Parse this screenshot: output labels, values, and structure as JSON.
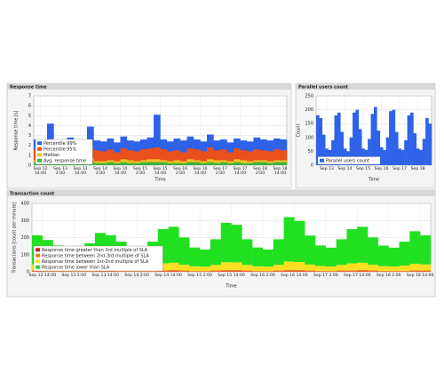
{
  "chart_data": [
    {
      "type": "area",
      "title": "Response time",
      "x_label": "Time",
      "y_label": "Response time [s]",
      "legend": "lower left",
      "grid": true,
      "x": [
        12,
        16,
        20,
        24,
        28,
        32,
        36,
        40,
        44,
        48,
        52,
        56,
        60,
        64,
        68,
        72,
        76,
        80,
        84,
        88,
        92,
        96,
        100,
        104,
        108,
        112,
        116,
        120,
        124,
        128,
        132,
        136,
        140,
        144,
        148,
        152,
        156,
        160
      ],
      "xlim": [
        10,
        162
      ],
      "xticks": [
        {
          "value": 14,
          "label": "Sep 12 14:00"
        },
        {
          "value": 26,
          "label": "Sep 13 2:00"
        },
        {
          "value": 38,
          "label": "Sep 13 14:00"
        },
        {
          "value": 50,
          "label": "Sep 14 2:00"
        },
        {
          "value": 62,
          "label": "Sep 14 14:00"
        },
        {
          "value": 74,
          "label": "Sep 15 2:00"
        },
        {
          "value": 86,
          "label": "Sep 15 14:00"
        },
        {
          "value": 98,
          "label": "Sep 16 2:00"
        },
        {
          "value": 110,
          "label": "Sep 16 14:00"
        },
        {
          "value": 122,
          "label": "Sep 17 2:00"
        },
        {
          "value": 134,
          "label": "Sep 17 14:00"
        },
        {
          "value": 146,
          "label": "Sep 18 2:00"
        },
        {
          "value": 158,
          "label": "Sep 18 14:00"
        }
      ],
      "ylim": [
        0,
        7
      ],
      "yticks": [
        0,
        1,
        2,
        3,
        4,
        5,
        6,
        7
      ],
      "series": [
        {
          "name": "Percentile 99%",
          "color": "#2e62e8",
          "values": [
            2.6,
            2.4,
            4.2,
            2.5,
            2.3,
            2.8,
            2.4,
            2.6,
            3.9,
            2.5,
            2.4,
            2.7,
            2.3,
            2.9,
            2.5,
            2.4,
            2.6,
            2.8,
            5.1,
            2.6,
            2.4,
            2.7,
            2.5,
            2.9,
            2.6,
            2.4,
            3.1,
            2.5,
            2.6,
            2.3,
            2.7,
            2.5,
            2.4,
            2.8,
            2.6,
            2.5,
            2.7,
            2.6
          ]
        },
        {
          "name": "Percentile 95%",
          "color": "#e8501c",
          "values": [
            1.6,
            1.5,
            1.8,
            1.4,
            1.3,
            1.7,
            1.5,
            1.6,
            1.9,
            1.5,
            1.4,
            1.6,
            1.3,
            1.7,
            1.5,
            1.4,
            1.6,
            1.7,
            1.8,
            1.6,
            1.4,
            1.5,
            1.3,
            1.7,
            1.6,
            1.4,
            1.8,
            1.5,
            1.6,
            1.3,
            1.7,
            1.5,
            1.4,
            1.6,
            1.5,
            1.4,
            1.6,
            1.5
          ]
        },
        {
          "name": "Median",
          "color": "#f0c020",
          "values": [
            0.5,
            0.4,
            0.6,
            0.4,
            0.4,
            0.6,
            0.5,
            0.5,
            0.7,
            0.4,
            0.4,
            0.5,
            0.4,
            0.6,
            0.5,
            0.4,
            0.5,
            0.6,
            0.6,
            0.5,
            0.4,
            0.5,
            0.4,
            0.6,
            0.5,
            0.4,
            0.6,
            0.5,
            0.5,
            0.4,
            0.6,
            0.5,
            0.4,
            0.5,
            0.5,
            0.4,
            0.5,
            0.5
          ]
        },
        {
          "name": "Avg. response time",
          "color": "#40b040",
          "values": [
            0.3,
            0.2,
            0.3,
            0.2,
            0.2,
            0.3,
            0.2,
            0.3,
            0.4,
            0.2,
            0.2,
            0.3,
            0.2,
            0.3,
            0.2,
            0.2,
            0.3,
            0.3,
            0.3,
            0.3,
            0.2,
            0.2,
            0.2,
            0.3,
            0.3,
            0.2,
            0.3,
            0.2,
            0.3,
            0.2,
            0.3,
            0.2,
            0.2,
            0.3,
            0.3,
            0.2,
            0.3,
            0.3
          ]
        }
      ]
    },
    {
      "type": "area",
      "title": "Parallel users count",
      "x_label": "Time",
      "y_label": "Count",
      "legend": "lower left",
      "grid": true,
      "x": [
        12,
        16,
        20,
        24,
        28,
        32,
        36,
        40,
        44,
        48,
        52,
        56,
        60,
        64,
        68,
        72,
        76,
        80,
        84,
        88,
        92,
        96,
        100,
        104,
        108,
        112,
        116,
        120,
        124,
        128,
        132,
        136,
        140,
        144,
        148,
        152,
        156,
        160
      ],
      "xlim": [
        10,
        162
      ],
      "xticks": [
        {
          "value": 24,
          "label": "Sep 13"
        },
        {
          "value": 48,
          "label": "Sep 14"
        },
        {
          "value": 72,
          "label": "Sep 15"
        },
        {
          "value": 96,
          "label": "Sep 16"
        },
        {
          "value": 120,
          "label": "Sep 17"
        },
        {
          "value": 144,
          "label": "Sep 18"
        }
      ],
      "ylim": [
        0,
        250
      ],
      "yticks": [
        0,
        50,
        100,
        150,
        200,
        250
      ],
      "series": [
        {
          "name": "Parallel users count",
          "color": "#2e62e8",
          "values": [
            180,
            170,
            110,
            60,
            55,
            90,
            180,
            190,
            120,
            60,
            50,
            100,
            190,
            200,
            130,
            60,
            55,
            95,
            185,
            210,
            125,
            65,
            55,
            100,
            195,
            200,
            120,
            60,
            55,
            90,
            180,
            190,
            115,
            60,
            55,
            95,
            170,
            150
          ]
        }
      ]
    },
    {
      "type": "stacked_area",
      "title": "Transaction count",
      "x_label": "Time",
      "y_label": "Transactions [count per minute]",
      "legend": "lower left",
      "grid": true,
      "x": [
        12,
        16,
        20,
        24,
        28,
        32,
        36,
        40,
        44,
        48,
        52,
        56,
        60,
        64,
        68,
        72,
        76,
        80,
        84,
        88,
        92,
        96,
        100,
        104,
        108,
        112,
        116,
        120,
        124,
        128,
        132,
        136,
        140,
        144,
        148,
        152,
        156,
        160
      ],
      "xlim": [
        10,
        162
      ],
      "xticks": [
        {
          "value": 14,
          "label": "Sep 12 14:00"
        },
        {
          "value": 26,
          "label": "Sep 13 2:00"
        },
        {
          "value": 38,
          "label": "Sep 13 14:00"
        },
        {
          "value": 50,
          "label": "Sep 14 2:00"
        },
        {
          "value": 62,
          "label": "Sep 14 14:00"
        },
        {
          "value": 74,
          "label": "Sep 15 2:00"
        },
        {
          "value": 86,
          "label": "Sep 15 14:00"
        },
        {
          "value": 98,
          "label": "Sep 16 2:00"
        },
        {
          "value": 110,
          "label": "Sep 16 14:00"
        },
        {
          "value": 122,
          "label": "Sep 17 2:00"
        },
        {
          "value": 134,
          "label": "Sep 17 14:00"
        },
        {
          "value": 146,
          "label": "Sep 18 2:00"
        },
        {
          "value": 158,
          "label": "Sep 18 14:00"
        }
      ],
      "ylim": [
        0,
        400
      ],
      "yticks": [
        0,
        100,
        200,
        300,
        400
      ],
      "series": [
        {
          "name": "Response time greater than 3rd multiple of SLA",
          "color": "#d02020",
          "values": [
            2,
            1,
            1,
            1,
            1,
            1,
            2,
            2,
            1,
            1,
            1,
            1,
            2,
            3,
            2,
            1,
            1,
            2,
            3,
            3,
            2,
            1,
            1,
            2,
            3,
            3,
            2,
            1,
            1,
            2,
            2,
            3,
            2,
            1,
            1,
            1,
            2,
            2
          ]
        },
        {
          "name": "Response time between 2nd-3rd multiple of SLA",
          "color": "#f08020",
          "values": [
            6,
            5,
            5,
            4,
            4,
            5,
            7,
            6,
            5,
            4,
            4,
            5,
            7,
            8,
            6,
            4,
            4,
            6,
            8,
            8,
            6,
            4,
            4,
            6,
            9,
            8,
            6,
            5,
            4,
            6,
            7,
            8,
            6,
            5,
            4,
            5,
            7,
            6
          ]
        },
        {
          "name": "Response time between 1st-2nd multiple of SLA",
          "color": "#f8e020",
          "values": [
            35,
            30,
            28,
            25,
            25,
            30,
            38,
            36,
            30,
            26,
            25,
            30,
            40,
            42,
            33,
            27,
            25,
            32,
            45,
            44,
            32,
            27,
            25,
            32,
            48,
            46,
            34,
            28,
            26,
            32,
            40,
            42,
            33,
            27,
            26,
            30,
            38,
            35
          ]
        },
        {
          "name": "Response time lower than SLA",
          "color": "#20e020",
          "values": [
            170,
            150,
            120,
            100,
            100,
            130,
            180,
            170,
            140,
            110,
            100,
            140,
            200,
            210,
            160,
            110,
            100,
            150,
            230,
            220,
            150,
            110,
            100,
            150,
            260,
            240,
            170,
            120,
            110,
            150,
            200,
            210,
            160,
            120,
            110,
            140,
            190,
            170
          ]
        }
      ]
    }
  ]
}
